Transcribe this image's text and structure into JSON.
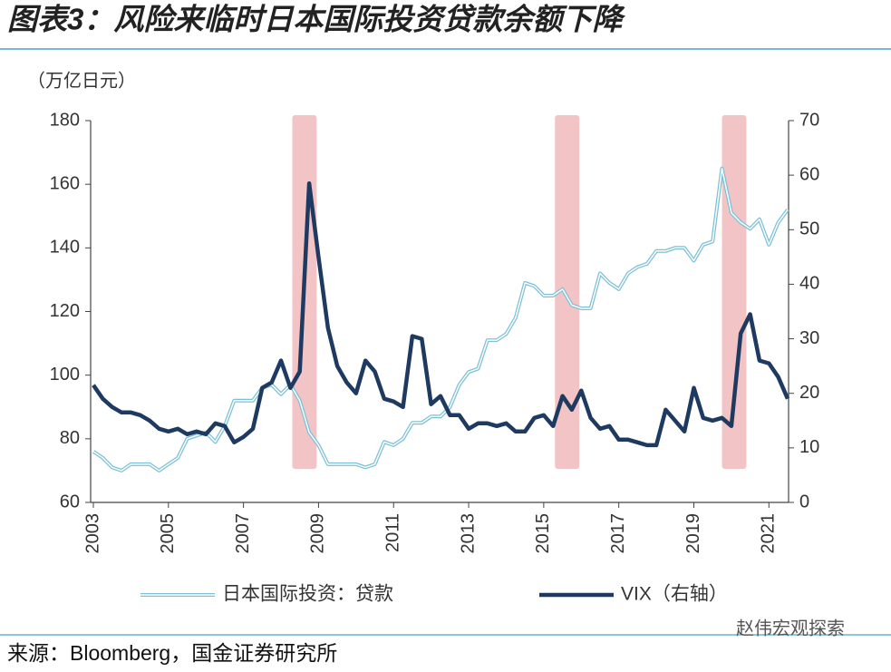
{
  "chart_data": {
    "type": "line",
    "title": "图表3：风险来临时日本国际投资贷款余额下降",
    "y_axis_label": "（万亿日元）",
    "source": "来源：Bloomberg，国金证券研究所",
    "watermark": "赵伟宏观探索",
    "x": [
      2003,
      2003.25,
      2003.5,
      2003.75,
      2004,
      2004.25,
      2004.5,
      2004.75,
      2005,
      2005.25,
      2005.5,
      2005.75,
      2006,
      2006.25,
      2006.5,
      2006.75,
      2007,
      2007.25,
      2007.5,
      2007.75,
      2008,
      2008.25,
      2008.5,
      2008.75,
      2009,
      2009.25,
      2009.5,
      2009.75,
      2010,
      2010.25,
      2010.5,
      2010.75,
      2011,
      2011.25,
      2011.5,
      2011.75,
      2012,
      2012.25,
      2012.5,
      2012.75,
      2013,
      2013.25,
      2013.5,
      2013.75,
      2014,
      2014.25,
      2014.5,
      2014.75,
      2015,
      2015.25,
      2015.5,
      2015.75,
      2016,
      2016.25,
      2016.5,
      2016.75,
      2017,
      2017.25,
      2017.5,
      2017.75,
      2018,
      2018.25,
      2018.5,
      2018.75,
      2019,
      2019.25,
      2019.5,
      2019.75,
      2020,
      2020.25,
      2020.5,
      2020.75,
      2021,
      2021.25,
      2021.5
    ],
    "series": [
      {
        "name": "日本国际投资：贷款",
        "color": "#7cc0d6",
        "axis": "y",
        "values": [
          76,
          74,
          71,
          70,
          72,
          72,
          72,
          70,
          72,
          74,
          80,
          81,
          82,
          79,
          84,
          92,
          92,
          92,
          96,
          97,
          94,
          97,
          92,
          82,
          78,
          72,
          72,
          72,
          72,
          71,
          72,
          79,
          78,
          80,
          85,
          85,
          87,
          87,
          90,
          97,
          101,
          102,
          111,
          111,
          113,
          118,
          129,
          128,
          125,
          125,
          127,
          122,
          121,
          121,
          132,
          129,
          127,
          132,
          134,
          135,
          139,
          139,
          140,
          140,
          136,
          141,
          142,
          165,
          151,
          148,
          146,
          149,
          141,
          148,
          152
        ]
      },
      {
        "name": "VIX（右轴）",
        "color": "#1f3a60",
        "axis": "y2",
        "values": [
          21.5,
          19,
          17.5,
          16.5,
          16.5,
          16,
          15,
          13.5,
          13,
          13.5,
          12.5,
          13,
          12.5,
          14.5,
          14,
          11,
          12,
          13.5,
          21,
          22,
          26,
          21,
          24,
          58.5,
          45,
          32,
          25,
          22,
          20,
          26,
          24,
          19,
          18.5,
          17.5,
          30.5,
          30,
          18,
          19.5,
          16,
          16,
          13.5,
          14.5,
          14.5,
          14,
          14.5,
          13,
          13,
          15.5,
          16,
          14,
          19.5,
          17,
          20.5,
          15.5,
          13.5,
          14,
          11.5,
          11.5,
          11,
          10.5,
          10.5,
          17,
          15,
          13,
          21,
          15.5,
          15,
          15.5,
          14,
          31,
          34.5,
          26,
          25.5,
          23,
          19
        ]
      }
    ],
    "highlight_ranges": [
      [
        2008.3,
        2008.95
      ],
      [
        2015.3,
        2015.95
      ],
      [
        2019.75,
        2020.4
      ]
    ],
    "highlight_color": "#f2c4c6",
    "xlim": [
      2003,
      2021.5
    ],
    "xticks": [
      2003,
      2005,
      2007,
      2009,
      2011,
      2013,
      2015,
      2017,
      2019,
      2021
    ],
    "ylim": [
      60,
      180
    ],
    "yticks": [
      60,
      80,
      100,
      120,
      140,
      160,
      180
    ],
    "y2lim": [
      0,
      70
    ],
    "y2ticks": [
      0,
      10,
      20,
      30,
      40,
      50,
      60,
      70
    ],
    "grid": false,
    "legend": "bottom"
  }
}
